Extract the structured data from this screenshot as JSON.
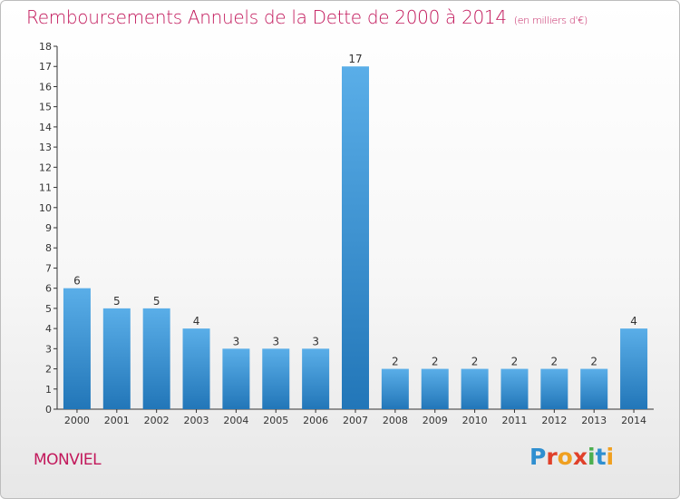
{
  "title": "Remboursements Annuels de la Dette de 2000 à 2014",
  "subtitle": "(en milliers d'€)",
  "commune": "MONVIEL",
  "logo": "Proxiti",
  "colors": {
    "title": "#c2185b",
    "bar_light": "#5aaee8",
    "bar_dark": "#2276b8"
  },
  "chart_data": {
    "type": "bar",
    "title": "Remboursements Annuels de la Dette de 2000 à 2014",
    "subtitle": "(en milliers d'€)",
    "categories": [
      "2000",
      "2001",
      "2002",
      "2003",
      "2004",
      "2005",
      "2006",
      "2007",
      "2008",
      "2009",
      "2010",
      "2011",
      "2012",
      "2013",
      "2014"
    ],
    "values": [
      6,
      5,
      5,
      4,
      3,
      3,
      3,
      17,
      2,
      2,
      2,
      2,
      2,
      2,
      4
    ],
    "ylim": [
      0,
      18
    ],
    "yticks": [
      0,
      1,
      2,
      3,
      4,
      5,
      6,
      7,
      8,
      9,
      10,
      11,
      12,
      13,
      14,
      15,
      16,
      17,
      18
    ],
    "grid": false,
    "legend": "none"
  }
}
